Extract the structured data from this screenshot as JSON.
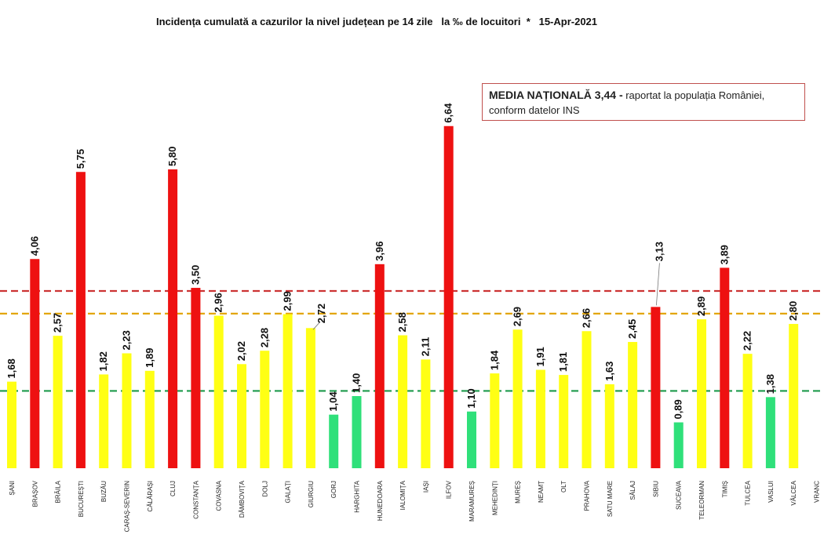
{
  "chart_data": {
    "type": "bar",
    "title": "Incidența cumulată a cazurilor la nivel județean pe 14 zile   la ‰ de locuitori  *   15-Apr-2021",
    "categories": [
      "BOTOȘANI",
      "BRAȘOV",
      "BRĂILA",
      "BUCUREȘTI",
      "BUZĂU",
      "CARAȘ-SEVERIN",
      "CĂLĂRAȘI",
      "CLUJ",
      "CONSTANȚA",
      "COVASNA",
      "DÂMBOVIȚA",
      "DOLJ",
      "GALAȚI",
      "GIURGIU",
      "GORJ",
      "HARGHITA",
      "HUNEDOARA",
      "IALOMIȚA",
      "IAȘI",
      "ILFOV",
      "MARAMUREȘ",
      "MEHEDINȚI",
      "MUREȘ",
      "NEAMȚ",
      "OLT",
      "PRAHOVA",
      "SATU MARE",
      "SĂLAJ",
      "SIBIU",
      "SUCEAVA",
      "TELEORMAN",
      "TIMIȘ",
      "TULCEA",
      "VASLUI",
      "VÂLCEA",
      "VRANCEA"
    ],
    "category_display": [
      "ȘANI",
      "BRAȘOV",
      "BRĂILA",
      "BUCUREȘTI",
      "BUZĂU",
      "CARAȘ-SEVERIN",
      "CĂLĂRAȘI",
      "CLUJ",
      "CONSTANȚA",
      "COVASNA",
      "DÂMBOVIȚA",
      "DOLJ",
      "GALAȚI",
      "GIURGIU",
      "GORJ",
      "HARGHITA",
      "HUNEDOARA",
      "IALOMIȚA",
      "IAȘI",
      "ILFOV",
      "MARAMUREȘ",
      "MEHEDINȚI",
      "MUREȘ",
      "NEAMȚ",
      "OLT",
      "PRAHOVA",
      "SATU MARE",
      "SĂLAJ",
      "SIBIU",
      "SUCEAVA",
      "TELEORMAN",
      "TIMIȘ",
      "TULCEA",
      "VASLUI",
      "VÂLCEA",
      "VRANC"
    ],
    "values": [
      1.68,
      4.06,
      2.57,
      5.75,
      1.82,
      2.23,
      1.89,
      5.8,
      3.5,
      2.96,
      2.02,
      2.28,
      2.99,
      2.72,
      1.04,
      1.4,
      3.96,
      2.58,
      2.11,
      6.64,
      1.1,
      1.84,
      2.69,
      1.91,
      1.81,
      2.66,
      1.63,
      2.45,
      3.13,
      0.89,
      2.89,
      3.89,
      2.22,
      1.38,
      2.8,
      null
    ],
    "value_labels": [
      "1,68",
      "4,06",
      "2,57",
      "5,75",
      "1,82",
      "2,23",
      "1,89",
      "5,80",
      "3,50",
      "2,96",
      "2,02",
      "2,28",
      "2,99",
      "2,72",
      "1,04",
      "1,40",
      "3,96",
      "2,58",
      "2,11",
      "6,64",
      "1,10",
      "1,84",
      "2,69",
      "1,91",
      "1,81",
      "2,66",
      "1,63",
      "2,45",
      "3,13",
      "0,89",
      "2,89",
      "3,89",
      "2,22",
      "1,38",
      "2,80",
      ""
    ],
    "ylim": [
      0,
      7.3
    ],
    "reference_lines": [
      {
        "value": 3.0,
        "color": "#e3a60b"
      },
      {
        "value": 3.44,
        "color": "#cc3333"
      },
      {
        "value": 1.5,
        "color": "#1c9a4a"
      }
    ],
    "thresholds": {
      "green_below": 1.5,
      "red_above": 3.0
    },
    "colors": {
      "green": "#2fe07a",
      "yellow": "#ffff14",
      "red": "#ee1111"
    },
    "grid": false,
    "note": {
      "bold": "MEDIA NAȚIONALĂ 3,44 -",
      "rest": " raportat la populația României, conform datelor INS"
    }
  }
}
